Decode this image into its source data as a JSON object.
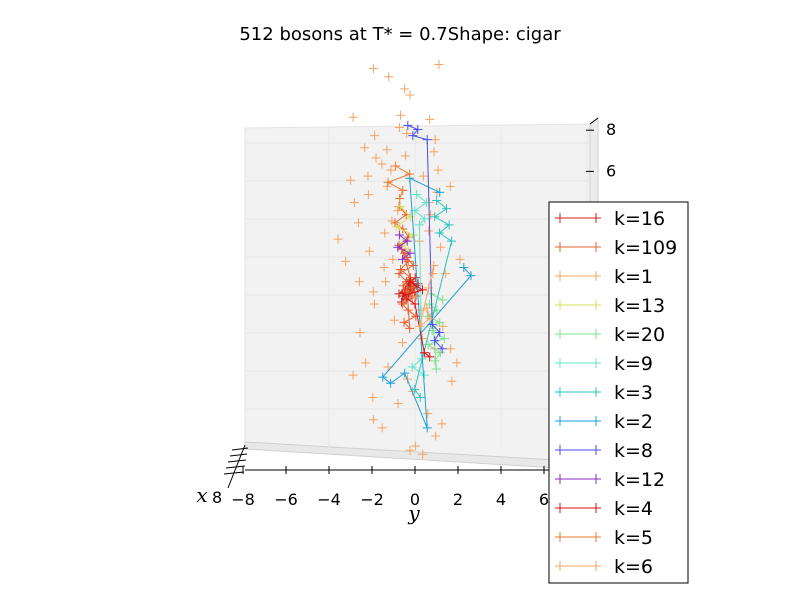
{
  "chart_data": {
    "type": "scatter",
    "projection": "3d",
    "title": "512 bosons at T* = 0.7Shape: cigar",
    "xlabel": "x",
    "ylabel": "y",
    "y_ticks": [
      "−8",
      "−6",
      "−4",
      "−2",
      "0",
      "2",
      "4",
      "6"
    ],
    "z_ticks": [
      "6",
      "8"
    ],
    "x_ticks_visible": [
      "8"
    ],
    "grid": true,
    "legend_position": "right",
    "marker": "+",
    "series": [
      {
        "name": "k=16",
        "color": "#cc2222",
        "points": [
          [
            0.1,
            -0.3,
            0.2
          ],
          [
            -0.2,
            -0.4,
            0.5
          ],
          [
            0.3,
            0.1,
            0.8
          ],
          [
            -0.1,
            -0.6,
            -0.1
          ],
          [
            0.2,
            -0.5,
            0.4
          ],
          [
            -0.3,
            -0.2,
            0.9
          ],
          [
            0.1,
            0.0,
            1.1
          ],
          [
            -0.2,
            -0.7,
            0.3
          ],
          [
            0.2,
            -0.1,
            0.6
          ],
          [
            0.0,
            -0.4,
            0.0
          ],
          [
            -0.1,
            0.1,
            0.7
          ],
          [
            0.3,
            -0.3,
            1.0
          ],
          [
            -0.3,
            -0.5,
            0.2
          ],
          [
            0.1,
            -0.2,
            0.5
          ],
          [
            0.0,
            -0.3,
            0.8
          ],
          [
            -0.2,
            0.0,
            0.4
          ]
        ]
      },
      {
        "name": "k=109",
        "color": "#e8602c",
        "points": [
          [
            -0.9,
            -0.6,
            4.6
          ],
          [
            -0.7,
            -0.3,
            4.2
          ],
          [
            -0.8,
            -0.8,
            3.8
          ],
          [
            -0.4,
            -0.5,
            3.5
          ],
          [
            -0.6,
            -0.2,
            3.1
          ],
          [
            -0.2,
            -0.7,
            2.7
          ],
          [
            -0.5,
            -0.4,
            2.3
          ],
          [
            -0.1,
            -0.3,
            1.9
          ],
          [
            -0.4,
            -0.6,
            1.5
          ],
          [
            0.0,
            -0.2,
            1.1
          ],
          [
            -0.3,
            -0.5,
            0.7
          ],
          [
            0.1,
            -0.4,
            0.4
          ],
          [
            -0.2,
            -0.1,
            0.1
          ],
          [
            0.2,
            -0.6,
            -0.2
          ],
          [
            -0.1,
            -0.3,
            -0.5
          ],
          [
            0.3,
            0.0,
            -0.8
          ],
          [
            0.0,
            -0.5,
            -1.1
          ],
          [
            -0.3,
            -0.2,
            -1.4
          ],
          [
            0.1,
            -0.4,
            0.9
          ],
          [
            -0.2,
            -0.7,
            1.3
          ],
          [
            0.2,
            -0.1,
            1.7
          ],
          [
            -0.5,
            -0.3,
            2.1
          ],
          [
            0.0,
            -0.6,
            2.5
          ],
          [
            -0.4,
            0.1,
            0.2
          ],
          [
            0.3,
            -0.2,
            0.6
          ]
        ]
      },
      {
        "name": "k=1",
        "color": "#f4a460",
        "points": [
          [
            -2.1,
            -1.6,
            11.4
          ],
          [
            -0.7,
            -1.1,
            11.0
          ],
          [
            1.4,
            0.9,
            11.6
          ],
          [
            -0.5,
            -0.4,
            10.4
          ],
          [
            -0.2,
            -0.2,
            10.1
          ],
          [
            -2.3,
            -2.5,
            9.0
          ],
          [
            -0.8,
            -0.6,
            8.5
          ],
          [
            0.2,
            -0.4,
            8.2
          ],
          [
            0.9,
            0.8,
            7.9
          ],
          [
            -2.1,
            -2.0,
            7.5
          ],
          [
            -1.3,
            -1.1,
            7.4
          ],
          [
            -2.0,
            -1.5,
            7.0
          ],
          [
            -0.2,
            -0.4,
            7.1
          ],
          [
            1.2,
            0.7,
            7.3
          ],
          [
            1.1,
            0.9,
            6.4
          ],
          [
            -1.5,
            -1.3,
            6.7
          ],
          [
            -2.5,
            -1.8,
            6.1
          ],
          [
            -0.7,
            -1.0,
            6.4
          ],
          [
            0.6,
            0.3,
            6.1
          ],
          [
            -1.2,
            -1.1,
            5.6
          ],
          [
            -1.6,
            -1.9,
            5.2
          ],
          [
            1.5,
            1.4,
            5.6
          ],
          [
            0.7,
            0.9,
            5.3
          ],
          [
            -2.6,
            -2.4,
            4.8
          ],
          [
            -0.6,
            -0.7,
            4.4
          ],
          [
            0.4,
            0.6,
            4.8
          ],
          [
            -2.7,
            -2.2,
            3.8
          ],
          [
            -2.9,
            -3.1,
            3.0
          ],
          [
            -1.3,
            -1.2,
            3.3
          ],
          [
            0.9,
            0.5,
            3.4
          ],
          [
            -2.0,
            -1.8,
            2.4
          ],
          [
            1.2,
            1.0,
            2.6
          ],
          [
            -1.5,
            -1.2,
            1.6
          ],
          [
            -0.8,
            -0.9,
            2.0
          ],
          [
            1.8,
            1.8,
            2.0
          ],
          [
            -2.4,
            -2.2,
            0.9
          ],
          [
            -1.4,
            -1.7,
            0.4
          ],
          [
            0.9,
            0.5,
            0.6
          ],
          [
            -1.8,
            -1.6,
            -0.2
          ],
          [
            0.4,
            0.2,
            -0.5
          ],
          [
            -1.0,
            -0.8,
            -1.0
          ],
          [
            1.2,
            1.1,
            -1.3
          ],
          [
            -2.2,
            -2.2,
            -1.6
          ],
          [
            -0.5,
            -0.5,
            -2.1
          ],
          [
            0.7,
            0.8,
            -2.4
          ],
          [
            -1.8,
            -2.0,
            -3.1
          ],
          [
            -2.3,
            -2.5,
            -3.7
          ],
          [
            -0.3,
            -0.3,
            -3.9
          ],
          [
            1.3,
            1.5,
            -4.0
          ],
          [
            -1.6,
            -1.7,
            -4.8
          ],
          [
            -0.5,
            -0.7,
            -5.1
          ],
          [
            0.6,
            0.5,
            -5.6
          ],
          [
            -2.1,
            -1.6,
            -5.9
          ],
          [
            1.0,
            0.8,
            -6.7
          ],
          [
            -0.2,
            -0.2,
            -7.4
          ],
          [
            0.4,
            0.3,
            -7.6
          ],
          [
            0.9,
            1.1,
            -6.1
          ],
          [
            -1.0,
            -1.2,
            0.9
          ],
          [
            -2.6,
            -2.8,
            1.9
          ],
          [
            1.6,
            1.4,
            -2.4
          ],
          [
            -0.4,
            -0.6,
            9.1
          ],
          [
            0.5,
            0.6,
            8.9
          ],
          [
            -1.1,
            -0.9,
            3.9
          ],
          [
            0.2,
            0.3,
            -1.9
          ],
          [
            -1.4,
            -1.3,
            -6.3
          ],
          [
            1.3,
            1.2,
            1.3
          ],
          [
            0.0,
            0.2,
            2.9
          ],
          [
            -0.9,
            -1.1,
            -3.3
          ],
          [
            0.8,
            0.6,
            4.2
          ],
          [
            -2.4,
            -2.6,
            5.9
          ],
          [
            1.5,
            1.7,
            -3.1
          ],
          [
            0.2,
            0.0,
            -7.2
          ],
          [
            -1.7,
            -1.6,
            8.1
          ],
          [
            -0.1,
            -0.1,
            -4.5
          ]
        ]
      },
      {
        "name": "k=13",
        "color": "#d4e157",
        "points": [
          [
            -0.5,
            -0.6,
            4.6
          ],
          [
            -0.1,
            -0.2,
            4.1
          ],
          [
            -0.4,
            -0.8,
            3.6
          ],
          [
            0.2,
            -0.1,
            3.2
          ],
          [
            -0.3,
            -0.5,
            2.8
          ],
          [
            0.0,
            -0.3,
            2.4
          ]
        ]
      },
      {
        "name": "k=20",
        "color": "#7ee28f",
        "points": [
          [
            0.4,
            0.6,
            -0.2
          ],
          [
            0.7,
            0.9,
            -0.5
          ],
          [
            0.5,
            0.5,
            -0.8
          ],
          [
            0.9,
            1.0,
            -1.1
          ],
          [
            0.6,
            0.7,
            -1.5
          ],
          [
            1.0,
            1.2,
            -1.9
          ],
          [
            0.7,
            0.5,
            -2.2
          ],
          [
            1.1,
            1.0,
            -2.6
          ],
          [
            0.8,
            0.8,
            -3.0
          ],
          [
            0.5,
            0.9,
            -3.4
          ],
          [
            0.9,
            0.6,
            0.3
          ],
          [
            1.2,
            1.1,
            0.0
          ]
        ]
      },
      {
        "name": "k=9",
        "color": "#62e5c8",
        "points": [
          [
            -0.2,
            0.1,
            5.2
          ],
          [
            0.2,
            0.5,
            4.8
          ],
          [
            -0.1,
            0.0,
            4.4
          ],
          [
            0.3,
            0.4,
            4.0
          ],
          [
            0.0,
            0.2,
            3.7
          ],
          [
            0.1,
            0.3,
            -2.9
          ],
          [
            -0.2,
            -0.1,
            -3.3
          ],
          [
            0.2,
            0.4,
            -3.7
          ]
        ]
      },
      {
        "name": "k=3",
        "color": "#29c4c0",
        "points": [
          [
            0.6,
            0.9,
            4.9
          ],
          [
            1.0,
            1.3,
            4.5
          ],
          [
            0.7,
            0.8,
            4.1
          ],
          [
            1.1,
            1.4,
            3.7
          ],
          [
            0.8,
            1.0,
            3.3
          ],
          [
            1.2,
            1.5,
            2.9
          ],
          [
            -0.1,
            0.0,
            -4.4
          ],
          [
            0.3,
            0.2,
            -4.8
          ]
        ]
      },
      {
        "name": "k=2",
        "color": "#1ba0d8",
        "points": [
          [
            1.6,
            2.0,
            1.6
          ],
          [
            1.8,
            2.3,
            1.2
          ],
          [
            -1.2,
            -1.3,
            -3.8
          ],
          [
            -0.8,
            -1.0,
            -4.1
          ],
          [
            -0.5,
            -0.4,
            -3.6
          ],
          [
            0.4,
            0.5,
            -6.3
          ],
          [
            -0.3,
            -0.2,
            6.0
          ],
          [
            0.9,
            1.0,
            5.3
          ]
        ]
      },
      {
        "name": "k=8",
        "color": "#4a4ee8",
        "points": [
          [
            -0.2,
            -0.3,
            8.6
          ],
          [
            0.2,
            0.1,
            8.4
          ],
          [
            0.0,
            -0.1,
            8.1
          ],
          [
            0.4,
            0.5,
            7.9
          ],
          [
            0.6,
            0.7,
            -1.2
          ],
          [
            0.9,
            1.0,
            -1.6
          ],
          [
            0.7,
            0.8,
            -2.0
          ],
          [
            1.0,
            1.1,
            -2.4
          ]
        ]
      },
      {
        "name": "k=12",
        "color": "#8a2bc2",
        "points": [
          [
            -0.8,
            -0.6,
            3.2
          ],
          [
            -0.4,
            -0.3,
            2.9
          ],
          [
            -0.6,
            -0.7,
            2.6
          ],
          [
            -0.2,
            -0.2,
            2.3
          ],
          [
            -0.5,
            -0.5,
            2.0
          ]
        ]
      },
      {
        "name": "k=4",
        "color": "#dd1111",
        "points": [
          [
            -0.1,
            -0.2,
            0.9
          ],
          [
            0.3,
            0.3,
            0.5
          ],
          [
            -0.4,
            -0.5,
            0.2
          ],
          [
            0.0,
            0.0,
            -0.2
          ],
          [
            0.2,
            0.4,
            -2.6
          ],
          [
            0.5,
            0.6,
            -2.8
          ]
        ]
      },
      {
        "name": "k=5",
        "color": "#ee7a30",
        "points": [
          [
            -0.6,
            -0.8,
            6.6
          ],
          [
            -0.3,
            -0.2,
            6.2
          ],
          [
            -0.9,
            -1.1,
            5.8
          ],
          [
            -0.4,
            -0.5,
            5.4
          ],
          [
            -0.7,
            -0.6,
            5.0
          ]
        ]
      },
      {
        "name": "k=6",
        "color": "#f4a460",
        "points": [
          [
            0.3,
            0.5,
            -0.4
          ],
          [
            0.6,
            0.6,
            -0.9
          ],
          [
            0.1,
            0.2,
            -1.3
          ],
          [
            0.4,
            0.8,
            1.7
          ],
          [
            0.8,
            0.7,
            1.3
          ]
        ]
      }
    ]
  }
}
